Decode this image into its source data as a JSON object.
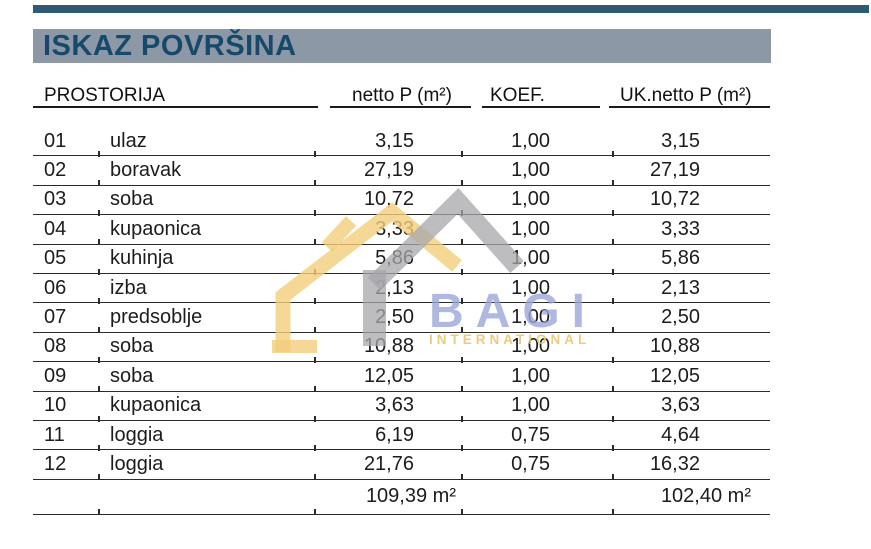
{
  "page": {
    "title": "ISKAZ POVRŠINA",
    "colors": {
      "top_bar": "#2e5a74",
      "banner_bg": "#8d98a7",
      "banner_text": "#17496a",
      "table_line": "#2b2b2b",
      "watermark_yellow": "#f3ce7a",
      "watermark_gray": "#a7a7ab",
      "watermark_blue": "#a4aedd",
      "watermark_subtitle_yellow": "#e9ca7a"
    }
  },
  "table": {
    "headers": {
      "room": "PROSTORIJA",
      "netto": "netto P (m²)",
      "koef": "KOEF.",
      "uk_netto": "UK.netto P (m²)"
    },
    "rows": [
      {
        "num": "01",
        "name": "ulaz",
        "netto": "3,15",
        "koef": "1,00",
        "uk": "3,15"
      },
      {
        "num": "02",
        "name": "boravak",
        "netto": "27,19",
        "koef": "1,00",
        "uk": "27,19"
      },
      {
        "num": "03",
        "name": "soba",
        "netto": "10,72",
        "koef": "1,00",
        "uk": "10,72"
      },
      {
        "num": "04",
        "name": "kupaonica",
        "netto": "3,33",
        "koef": "1,00",
        "uk": "3,33"
      },
      {
        "num": "05",
        "name": "kuhinja",
        "netto": "5,86",
        "koef": "1,00",
        "uk": "5,86"
      },
      {
        "num": "06",
        "name": "izba",
        "netto": "2,13",
        "koef": "1,00",
        "uk": "2,13"
      },
      {
        "num": "07",
        "name": "predsoblje",
        "netto": "2,50",
        "koef": "1,00",
        "uk": "2,50"
      },
      {
        "num": "08",
        "name": "soba",
        "netto": "10,88",
        "koef": "1,00",
        "uk": "10,88"
      },
      {
        "num": "09",
        "name": "soba",
        "netto": "12,05",
        "koef": "1,00",
        "uk": "12,05"
      },
      {
        "num": "10",
        "name": "kupaonica",
        "netto": "3,63",
        "koef": "1,00",
        "uk": "3,63"
      },
      {
        "num": "11",
        "name": "loggia",
        "netto": "6,19",
        "koef": "0,75",
        "uk": "4,64"
      },
      {
        "num": "12",
        "name": "loggia",
        "netto": "21,76",
        "koef": "0,75",
        "uk": "16,32"
      }
    ],
    "totals": {
      "netto": "109,39 m²",
      "uk": "102,40 m²"
    }
  },
  "watermark": {
    "brand": "BAGI",
    "subtitle": "INTERNATIONAL"
  }
}
